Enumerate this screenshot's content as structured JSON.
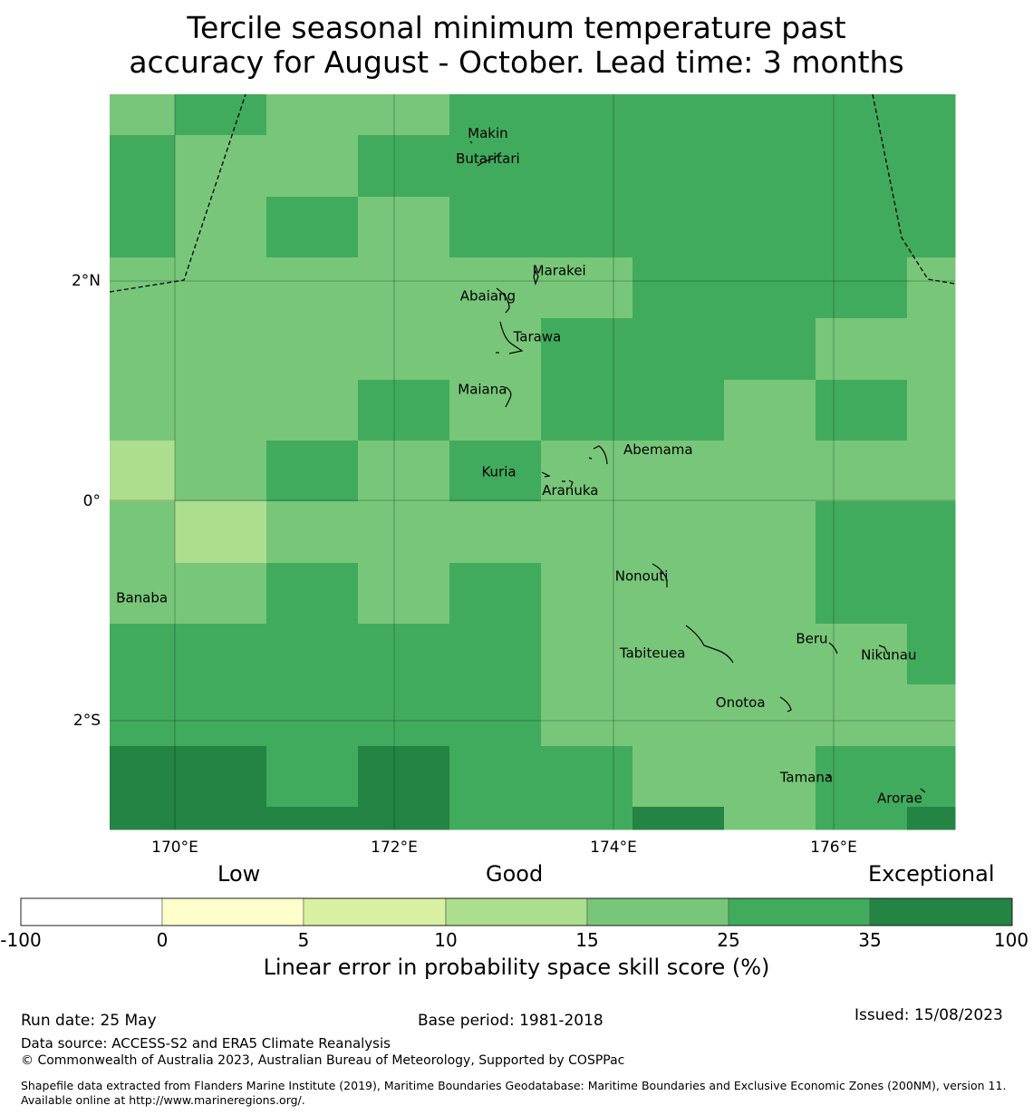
{
  "title": {
    "line1": "Tercile seasonal minimum temperature past",
    "line2": "accuracy for August - October. Lead time: 3 months"
  },
  "map": {
    "lon_labels": [
      "170°E",
      "172°E",
      "174°E",
      "176°E"
    ],
    "lat_labels": [
      "2°N",
      "0°",
      "2°S"
    ],
    "places": [
      {
        "name": "Makin",
        "lon": 172.85,
        "lat": 3.3
      },
      {
        "name": "Butaritari",
        "lon": 172.85,
        "lat": 3.07
      },
      {
        "name": "Marakei",
        "lon": 173.5,
        "lat": 2.05
      },
      {
        "name": "Abaiang",
        "lon": 172.85,
        "lat": 1.82
      },
      {
        "name": "Tarawa",
        "lon": 173.3,
        "lat": 1.45
      },
      {
        "name": "Maiana",
        "lon": 172.8,
        "lat": 0.97
      },
      {
        "name": "Abemama",
        "lon": 174.4,
        "lat": 0.42
      },
      {
        "name": "Kuria",
        "lon": 172.95,
        "lat": 0.22
      },
      {
        "name": "Aranuka",
        "lon": 173.6,
        "lat": 0.05
      },
      {
        "name": "Banaba",
        "lon": 169.7,
        "lat": -0.93
      },
      {
        "name": "Nonouti",
        "lon": 174.25,
        "lat": -0.73
      },
      {
        "name": "Beru",
        "lon": 175.8,
        "lat": -1.3
      },
      {
        "name": "Nikunau",
        "lon": 176.5,
        "lat": -1.45
      },
      {
        "name": "Tabiteuea",
        "lon": 174.35,
        "lat": -1.43
      },
      {
        "name": "Onotoa",
        "lon": 175.15,
        "lat": -1.88
      },
      {
        "name": "Tamana",
        "lon": 175.75,
        "lat": -2.56
      },
      {
        "name": "Arorae",
        "lon": 176.6,
        "lat": -2.75
      }
    ]
  },
  "colorbar": {
    "category_labels": [
      "Low",
      "Good",
      "Exceptional"
    ],
    "ticks": [
      "-100",
      "0",
      "5",
      "10",
      "15",
      "25",
      "35",
      "100"
    ],
    "colors": [
      "#ffffff",
      "#ffffcc",
      "#d9f0a3",
      "#addd8e",
      "#78c679",
      "#41ab5d",
      "#238443"
    ],
    "title": "Linear error in probability space skill score (%)"
  },
  "footer": {
    "run_date": "Run date: 25 May",
    "base_period": "Base period: 1981-2018",
    "issued": "Issued: 15/08/2023",
    "data_source": "Data source: ACCESS-S2 and ERA5 Climate Reanalysis",
    "copyright": "© Commonwealth of Australia 2023, Australian Bureau of Meteorology, Supported by COSPPac",
    "shapefile": "Shapefile data extracted from Flanders Marine Institute (2019), Maritime Boundaries Geodatabase: Maritime Boundaries and Exclusive Economic Zones (200NM), version 11. Available online at http://www.marineregions.org/."
  }
}
